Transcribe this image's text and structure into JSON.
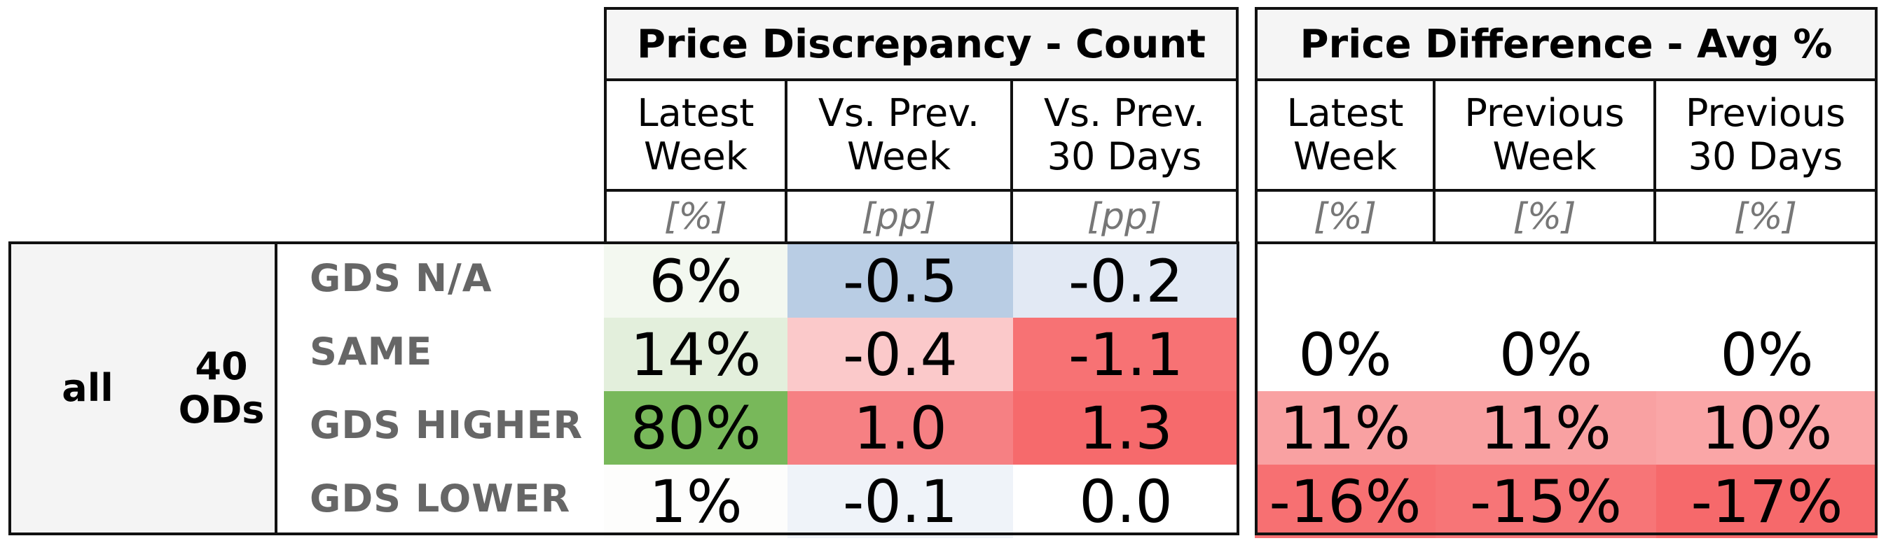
{
  "chart_data": {
    "type": "table",
    "group": {
      "segment": "all",
      "ods_count": "40",
      "ods_label": "ODs"
    },
    "rows": [
      "GDS N/A",
      "SAME",
      "GDS HIGHER",
      "GDS LOWER"
    ],
    "sections": [
      {
        "title": "Price Discrepancy - Count",
        "columns": [
          {
            "label": "Latest\nWeek",
            "unit": "[%]"
          },
          {
            "label": "Vs. Prev.\nWeek",
            "unit": "[pp]"
          },
          {
            "label": "Vs. Prev.\n30 Days",
            "unit": "[pp]"
          }
        ],
        "cells": [
          [
            {
              "text": "6%",
              "color": "#f3f8f0"
            },
            {
              "text": "-0.5",
              "color": "#b9cde4"
            },
            {
              "text": "-0.2",
              "color": "#e2e9f4"
            }
          ],
          [
            {
              "text": "14%",
              "color": "#e3efdc"
            },
            {
              "text": "-0.4",
              "color": "#fbc9ca"
            },
            {
              "text": "-1.1",
              "color": "#f77274"
            }
          ],
          [
            {
              "text": "80%",
              "color": "#78b85a"
            },
            {
              "text": "1.0",
              "color": "#f68083"
            },
            {
              "text": "1.3",
              "color": "#f66a6c"
            }
          ],
          [
            {
              "text": "1%",
              "color": "#fdfdfc"
            },
            {
              "text": "-0.1",
              "color": "#eff3f9"
            },
            {
              "text": "0.0",
              "color": "#ffffff"
            }
          ]
        ]
      },
      {
        "title": "Price Difference - Avg %",
        "columns": [
          {
            "label": "Latest\nWeek",
            "unit": "[%]"
          },
          {
            "label": "Previous\nWeek",
            "unit": "[%]"
          },
          {
            "label": "Previous\n30 Days",
            "unit": "[%]"
          }
        ],
        "cells": [
          [
            {
              "text": "",
              "color": "#ffffff"
            },
            {
              "text": "",
              "color": "#ffffff"
            },
            {
              "text": "",
              "color": "#ffffff"
            }
          ],
          [
            {
              "text": "0%",
              "color": "#ffffff"
            },
            {
              "text": "0%",
              "color": "#ffffff"
            },
            {
              "text": "0%",
              "color": "#ffffff"
            }
          ],
          [
            {
              "text": "11%",
              "color": "#f9a1a2"
            },
            {
              "text": "11%",
              "color": "#f9a1a2"
            },
            {
              "text": "10%",
              "color": "#faa6a7"
            }
          ],
          [
            {
              "text": "-16%",
              "color": "#f77072"
            },
            {
              "text": "-15%",
              "color": "#f77577"
            },
            {
              "text": "-17%",
              "color": "#f6696b"
            }
          ]
        ]
      }
    ]
  }
}
